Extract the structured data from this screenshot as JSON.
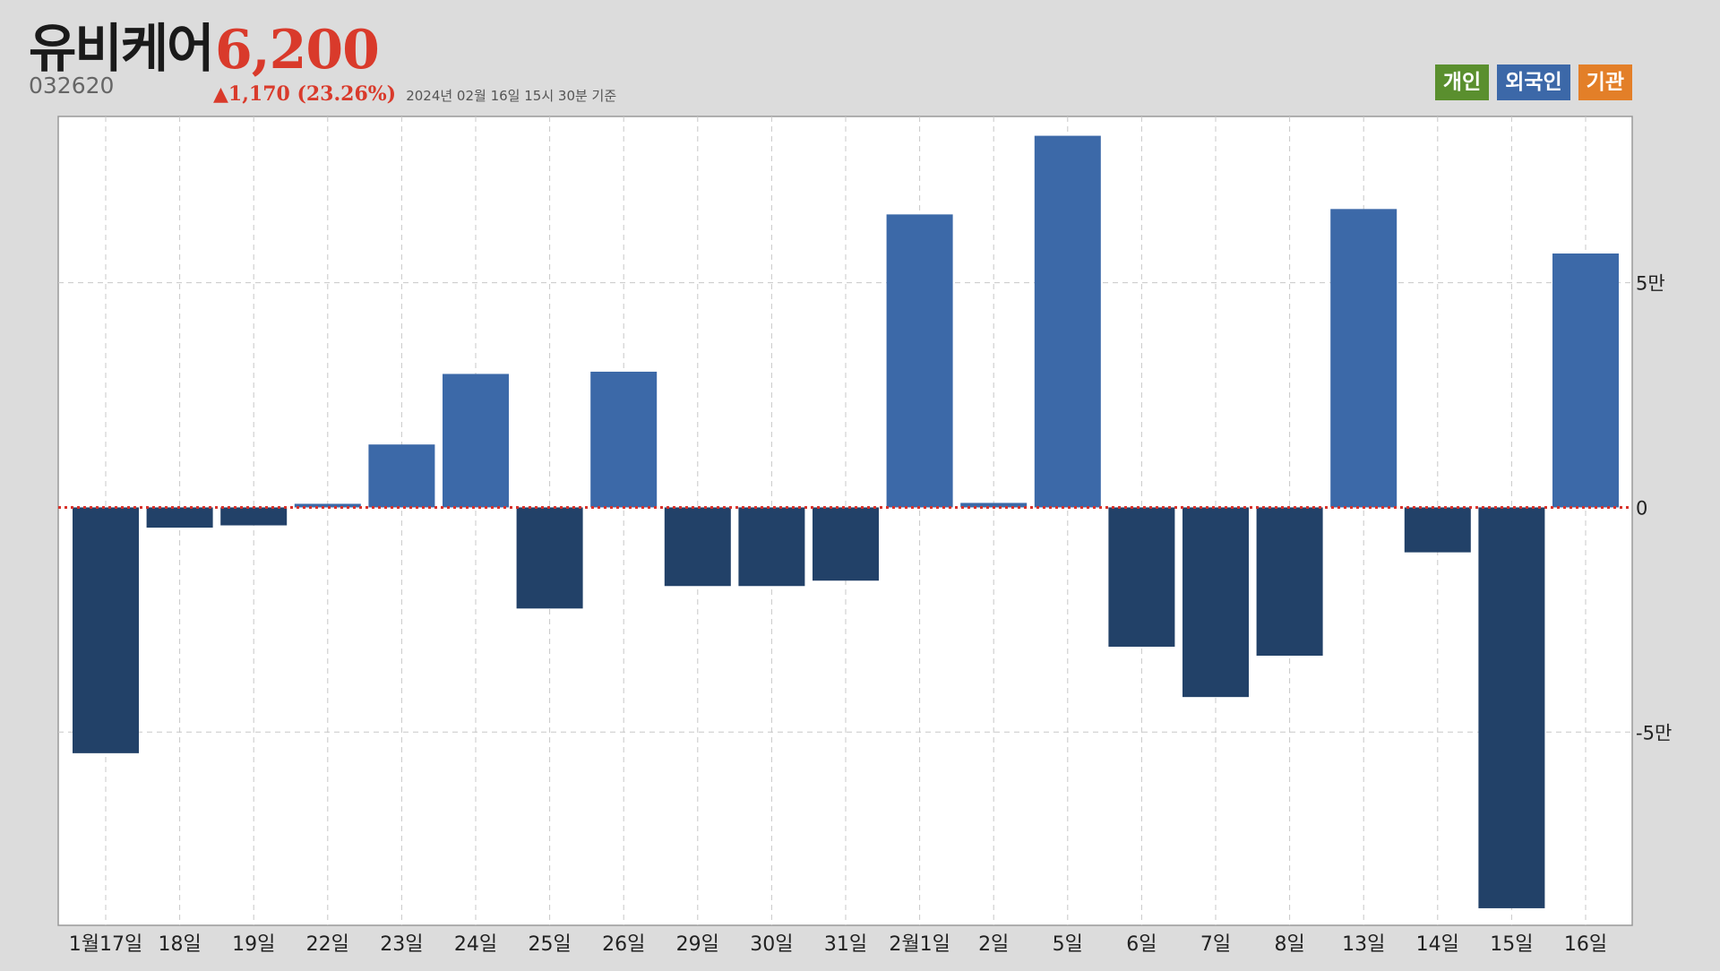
{
  "header": {
    "name": "유비케어",
    "price": "6,200",
    "code": "032620",
    "change": "▲1,170 (23.26%)",
    "as_of": "2024년 02월 16일 15시 30분 기준"
  },
  "legend": [
    {
      "label": "개인",
      "color": "#5a8f2e"
    },
    {
      "label": "외국인",
      "color": "#3c68a8"
    },
    {
      "label": "기관",
      "color": "#e37f28"
    }
  ],
  "colors": {
    "positive_bar": "#3c69a8",
    "negative_bar": "#224168",
    "zero_line": "#d9312a",
    "grid": "#c8c8c8",
    "plot_bg": "#ffffff"
  },
  "chart_data": {
    "type": "bar",
    "series": [
      {
        "name": "외국인"
      }
    ],
    "categories": [
      "1월17일",
      "18일",
      "19일",
      "22일",
      "23일",
      "24일",
      "25일",
      "26일",
      "29일",
      "30일",
      "31일",
      "2월1일",
      "2일",
      "5일",
      "6일",
      "7일",
      "8일",
      "13일",
      "14일",
      "15일",
      "16일"
    ],
    "values": [
      -54700,
      -4500,
      -4000,
      800,
      14000,
      29700,
      -22500,
      30200,
      -17500,
      -17500,
      -16300,
      65200,
      1000,
      82700,
      -31000,
      -42200,
      -33000,
      66400,
      -10000,
      -89200,
      56500
    ],
    "ylim": [
      -93000,
      87000
    ],
    "yticks": [
      -50000,
      0,
      50000
    ],
    "ytick_labels": [
      "-5만",
      "0",
      "5만"
    ],
    "grid": true,
    "legend_position": "top-right"
  }
}
